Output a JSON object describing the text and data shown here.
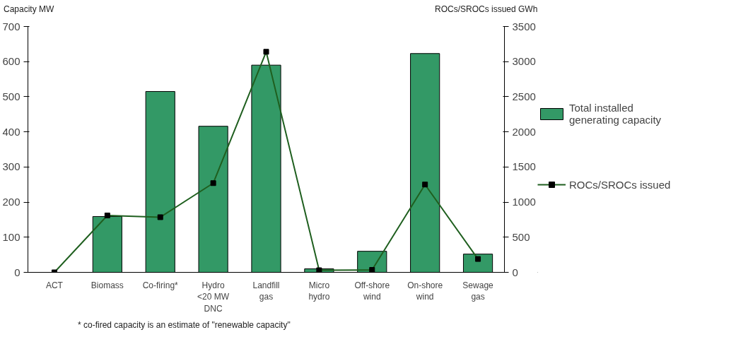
{
  "chart_data": {
    "type": "bar",
    "ylabel": "Capacity MW",
    "y2label": "ROCs/SROCs issued GWh",
    "categories": [
      "ACT",
      "Biomass",
      "Co-firing*",
      "Hydro\n<20 MW\nDNC",
      "Landfill\ngas",
      "Micro\nhydro",
      "Off-shore\nwind",
      "On-shore\nwind",
      "Sewage\ngas"
    ],
    "series": [
      {
        "name": "Total installed generating capacity",
        "color": "#339966",
        "values": [
          null,
          159,
          515,
          416,
          590,
          10,
          60,
          623,
          52
        ]
      },
      {
        "name": "ROCs/SROCs issued",
        "type": "line",
        "axis": "y2",
        "color": "#1f5f1f",
        "marker": "square",
        "values": [
          0,
          810,
          785,
          1270,
          3140,
          30,
          35,
          1250,
          190
        ]
      }
    ],
    "ylim": [
      0,
      700
    ],
    "yticks": [
      0,
      100,
      200,
      300,
      400,
      500,
      600,
      700
    ],
    "y2lim": [
      0,
      3500
    ],
    "y2ticks": [
      0,
      500,
      1000,
      1500,
      2000,
      2500,
      3000,
      3500
    ],
    "grid": false,
    "legend": "right",
    "annotations": [
      "* co-fired capacity is an estimate of \"renewable capacity\""
    ]
  }
}
